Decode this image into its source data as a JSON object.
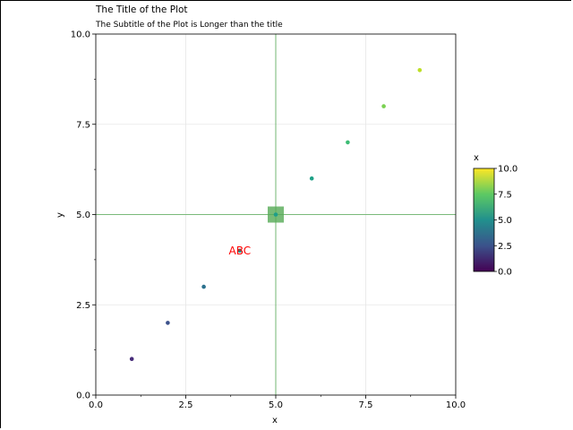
{
  "chart_data": {
    "type": "scatter",
    "title": "The Title of the Plot",
    "subtitle": "The Subtitle of the Plot is Longer than the title",
    "xlabel": "x",
    "ylabel": "y",
    "xlim": [
      0,
      10
    ],
    "ylim": [
      0,
      10
    ],
    "x_ticks": [
      "0.0",
      "2.5",
      "5.0",
      "7.5",
      "10.0"
    ],
    "y_ticks": [
      "0.0",
      "2.5",
      "5.0",
      "7.5",
      "10.0"
    ],
    "grid": true,
    "points": [
      {
        "x": 1,
        "y": 1,
        "color": "#472c7a"
      },
      {
        "x": 2,
        "y": 2,
        "color": "#3b518b"
      },
      {
        "x": 3,
        "y": 3,
        "color": "#2c718e"
      },
      {
        "x": 4,
        "y": 4,
        "color": "#21908d"
      },
      {
        "x": 5,
        "y": 5,
        "color": "#1f9e89"
      },
      {
        "x": 6,
        "y": 6,
        "color": "#1fa187"
      },
      {
        "x": 7,
        "y": 7,
        "color": "#3dbc74"
      },
      {
        "x": 8,
        "y": 8,
        "color": "#7ad151"
      },
      {
        "x": 9,
        "y": 9,
        "color": "#bddf26"
      }
    ],
    "reference_lines": {
      "x": 5,
      "y": 5,
      "color": "#55aa55"
    },
    "highlight_marker": {
      "x": 5,
      "y": 5,
      "color": "#55aa55"
    },
    "annotation": {
      "text": "ABC",
      "x": 4,
      "y": 4,
      "color": "#ff0000"
    },
    "colorbar": {
      "label": "x",
      "range": [
        0,
        10
      ],
      "ticks": [
        "0.0",
        "2.5",
        "5.0",
        "7.5",
        "10.0"
      ],
      "colormap": "viridis",
      "colors": [
        "#440154",
        "#3b528b",
        "#21908d",
        "#5dc963",
        "#fde725"
      ]
    }
  }
}
